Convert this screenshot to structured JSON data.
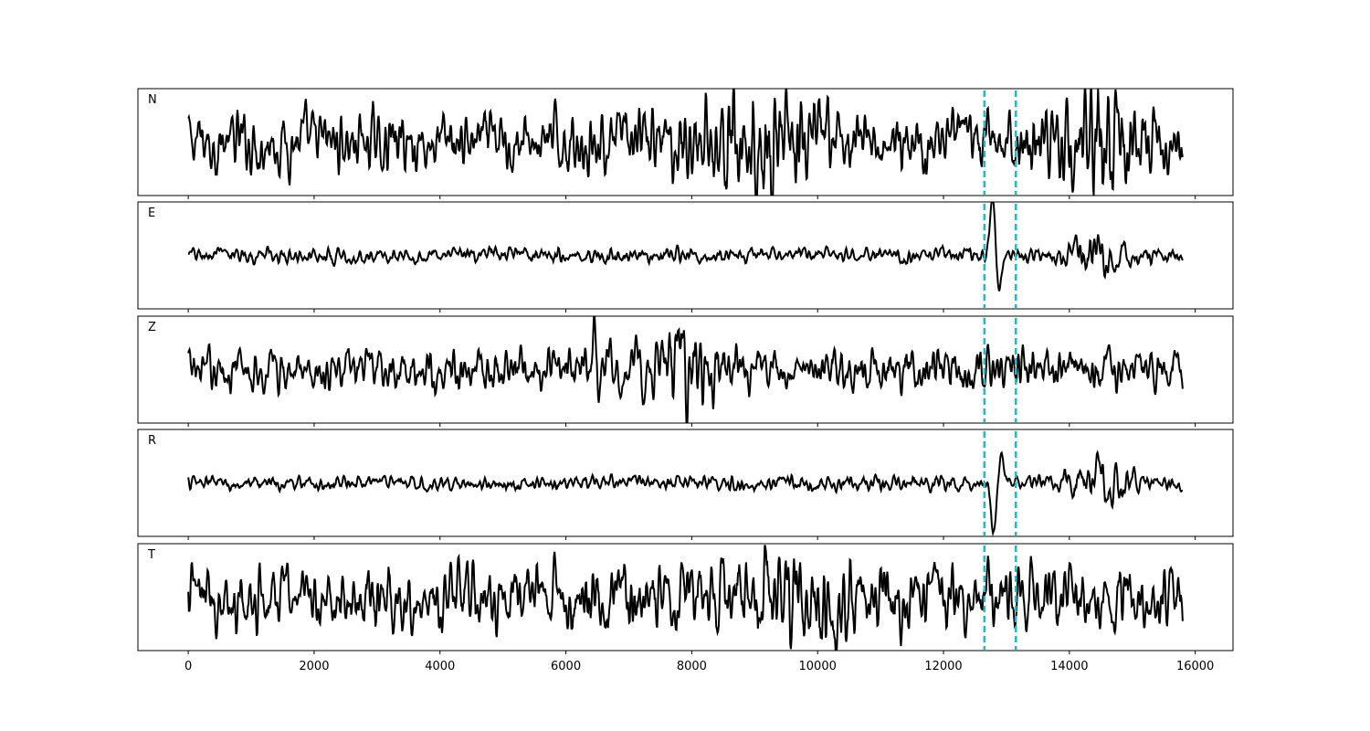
{
  "chart_data": {
    "type": "line",
    "xlim": [
      -800,
      16600
    ],
    "xticks": [
      0,
      2000,
      4000,
      6000,
      8000,
      10000,
      12000,
      14000,
      16000
    ],
    "x_end": 15800,
    "markers": [
      12650,
      13150
    ],
    "line_color": "#000000",
    "marker_color": "#17becf",
    "panels": [
      {
        "label": "N",
        "ylim": [
          -1.2,
          1.2
        ],
        "base_amp": 0.45,
        "events": [
          {
            "x": 9000,
            "amp": 0.6,
            "width": 900
          },
          {
            "x": 14400,
            "amp": 0.5,
            "width": 700
          }
        ]
      },
      {
        "label": "E",
        "ylim": [
          -1.3,
          1.3
        ],
        "base_amp": 0.12,
        "events": [
          {
            "x": 12780,
            "amp": 1.45,
            "width": 110,
            "shape": "pulse"
          },
          {
            "x": 14450,
            "amp": 0.25,
            "width": 400
          }
        ]
      },
      {
        "label": "Z",
        "ylim": [
          -1.3,
          1.3
        ],
        "base_amp": 0.35,
        "events": [
          {
            "x": 6450,
            "amp": 1.25,
            "width": 90,
            "shape": "pulse"
          },
          {
            "x": 7900,
            "amp": 0.5,
            "width": 500
          }
        ]
      },
      {
        "label": "R",
        "ylim": [
          -1.3,
          1.3
        ],
        "base_amp": 0.12,
        "events": [
          {
            "x": 12800,
            "amp": -1.35,
            "width": 120,
            "shape": "pulse"
          },
          {
            "x": 14500,
            "amp": 0.3,
            "width": 450
          }
        ]
      },
      {
        "label": "T",
        "ylim": [
          -1.2,
          1.2
        ],
        "base_amp": 0.5,
        "events": [
          {
            "x": 9800,
            "amp": 0.4,
            "width": 900
          }
        ]
      }
    ]
  }
}
